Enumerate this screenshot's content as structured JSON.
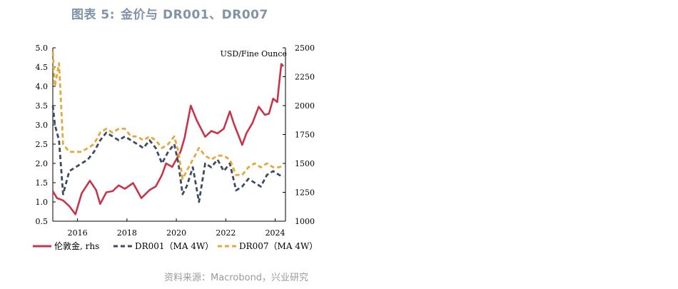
{
  "figure": {
    "label": "图表 5:",
    "title": "金价与 DR001、DR007"
  },
  "source": {
    "label": "资料来源：",
    "text": "Macrobond，兴业研究"
  },
  "chart_data": {
    "type": "line",
    "unit_label": "USD/Fine Ounce",
    "x_ticks": [
      "2016",
      "2018",
      "2020",
      "2022",
      "2024"
    ],
    "xlim": [
      "2015-01",
      "2024-06"
    ],
    "y_left": {
      "ylim": [
        0.5,
        5.0
      ],
      "ticks": [
        "5.0",
        "4.5",
        "4.0",
        "3.5",
        "3.0",
        "2.5",
        "2.0",
        "1.5",
        "1.0",
        "0.5"
      ]
    },
    "y_right": {
      "ylim": [
        1000,
        2500
      ],
      "ticks": [
        "2500",
        "2250",
        "2000",
        "1750",
        "1500",
        "1250",
        "1000"
      ]
    },
    "series": [
      {
        "name": "伦敦金, rhs",
        "axis": "right",
        "color": "#c8344a",
        "style": "solid",
        "x": [
          "2015-01",
          "2015-03",
          "2015-06",
          "2015-09",
          "2015-12",
          "2016-03",
          "2016-07",
          "2016-10",
          "2016-12",
          "2017-03",
          "2017-06",
          "2017-09",
          "2017-12",
          "2018-04",
          "2018-08",
          "2018-12",
          "2019-03",
          "2019-06",
          "2019-08",
          "2019-11",
          "2020-03",
          "2020-05",
          "2020-08",
          "2020-11",
          "2021-03",
          "2021-06",
          "2021-09",
          "2021-12",
          "2022-03",
          "2022-05",
          "2022-09",
          "2022-11",
          "2023-02",
          "2023-05",
          "2023-08",
          "2023-10",
          "2023-12",
          "2024-02",
          "2024-03",
          "2024-04",
          "2024-05"
        ],
        "values": [
          1260,
          1200,
          1180,
          1130,
          1060,
          1240,
          1350,
          1270,
          1150,
          1250,
          1260,
          1310,
          1280,
          1330,
          1200,
          1270,
          1300,
          1400,
          1500,
          1470,
          1600,
          1720,
          2000,
          1870,
          1730,
          1780,
          1760,
          1800,
          1950,
          1840,
          1660,
          1760,
          1850,
          1990,
          1920,
          1930,
          2060,
          2030,
          2200,
          2360,
          2340
        ]
      },
      {
        "name": "DR001（MA 4W）",
        "axis": "left",
        "color": "#3d4a63",
        "style": "dashed",
        "x": [
          "2015-01",
          "2015-02",
          "2015-04",
          "2015-06",
          "2015-09",
          "2015-12",
          "2016-03",
          "2016-06",
          "2016-09",
          "2016-12",
          "2017-03",
          "2017-06",
          "2017-09",
          "2017-12",
          "2018-03",
          "2018-06",
          "2018-09",
          "2018-12",
          "2019-03",
          "2019-06",
          "2019-09",
          "2019-12",
          "2020-02",
          "2020-04",
          "2020-06",
          "2020-09",
          "2020-12",
          "2021-03",
          "2021-06",
          "2021-09",
          "2021-12",
          "2022-03",
          "2022-06",
          "2022-09",
          "2022-12",
          "2023-03",
          "2023-06",
          "2023-09",
          "2023-12",
          "2024-03",
          "2024-05"
        ],
        "values": [
          3.5,
          3.0,
          2.6,
          1.2,
          1.8,
          1.9,
          2.0,
          2.1,
          2.3,
          2.6,
          2.8,
          2.7,
          2.6,
          2.7,
          2.6,
          2.5,
          2.4,
          2.6,
          2.4,
          2.0,
          2.3,
          2.5,
          2.0,
          1.2,
          1.4,
          1.9,
          1.0,
          2.0,
          1.9,
          2.1,
          1.8,
          2.0,
          1.3,
          1.4,
          1.6,
          1.5,
          1.4,
          1.7,
          1.8,
          1.7,
          1.65
        ]
      },
      {
        "name": "DR007（MA 4W）",
        "axis": "left",
        "color": "#e4a93a",
        "style": "dashed",
        "x": [
          "2015-01",
          "2015-02",
          "2015-04",
          "2015-06",
          "2015-09",
          "2015-12",
          "2016-03",
          "2016-06",
          "2016-09",
          "2016-12",
          "2017-03",
          "2017-06",
          "2017-09",
          "2017-12",
          "2018-03",
          "2018-06",
          "2018-09",
          "2018-12",
          "2019-03",
          "2019-06",
          "2019-09",
          "2019-12",
          "2020-02",
          "2020-04",
          "2020-06",
          "2020-09",
          "2020-12",
          "2021-03",
          "2021-06",
          "2021-09",
          "2021-12",
          "2022-03",
          "2022-06",
          "2022-09",
          "2022-12",
          "2023-03",
          "2023-06",
          "2023-09",
          "2023-12",
          "2024-03",
          "2024-05"
        ],
        "values": [
          4.9,
          4.0,
          4.6,
          2.5,
          2.3,
          2.3,
          2.3,
          2.4,
          2.5,
          2.8,
          2.9,
          2.8,
          2.9,
          2.9,
          2.7,
          2.7,
          2.6,
          2.7,
          2.6,
          2.4,
          2.5,
          2.7,
          2.3,
          1.6,
          1.8,
          2.1,
          2.4,
          2.2,
          2.1,
          2.2,
          2.2,
          2.1,
          1.7,
          1.7,
          1.9,
          2.0,
          1.9,
          2.0,
          1.9,
          1.9,
          1.95
        ]
      }
    ],
    "legend": {
      "placement": "bottom",
      "items": [
        "伦敦金, rhs",
        "DR001（MA 4W）",
        "DR007（MA 4W）"
      ]
    }
  }
}
